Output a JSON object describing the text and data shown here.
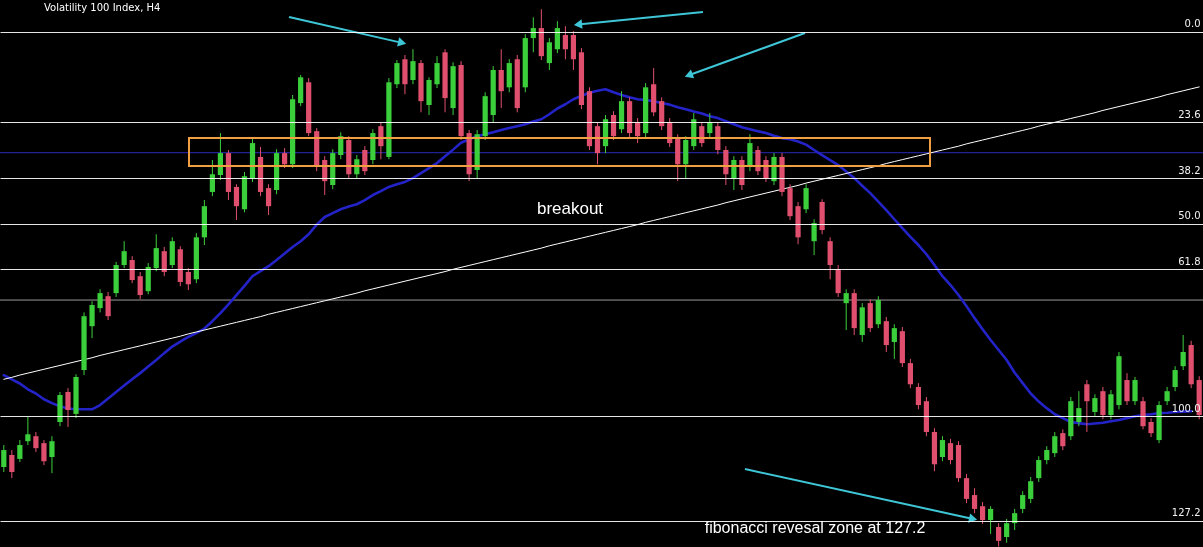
{
  "chart_data": {
    "type": "candlestick",
    "title": "Volatility 100 Index, H4",
    "annotations": [
      "breakout",
      "fibonacci revesal zone at 127.2"
    ],
    "categories": [
      null,
      null,
      null,
      null,
      null,
      null,
      null,
      null,
      null,
      null,
      null,
      null,
      null,
      null,
      null,
      null,
      null,
      null,
      null,
      null,
      null,
      null,
      null,
      null,
      null,
      null,
      null,
      null,
      null,
      null,
      null,
      null,
      null,
      null,
      null,
      null,
      null,
      null,
      null,
      null,
      null,
      null,
      null,
      null,
      null,
      null,
      null,
      null,
      null,
      null,
      null,
      null,
      null,
      null,
      null,
      null,
      null,
      null,
      null,
      null,
      null,
      null,
      null,
      null,
      null,
      null,
      null,
      null,
      null,
      null,
      null,
      null,
      null,
      null,
      null,
      null,
      null,
      null,
      null,
      null,
      null,
      null,
      null,
      null,
      null,
      null,
      null,
      null,
      null,
      null,
      null,
      null,
      null,
      null,
      null,
      null,
      null,
      null,
      null,
      null,
      null,
      null,
      null,
      null,
      null,
      null,
      null,
      null,
      null,
      null,
      null,
      null,
      null,
      null,
      null,
      null,
      null,
      null,
      null,
      null,
      null,
      null,
      null,
      null,
      null,
      null,
      null,
      null,
      null,
      null,
      null,
      null,
      null,
      null,
      null,
      null,
      null,
      null,
      null,
      null,
      null,
      null,
      null,
      null,
      null,
      null,
      null,
      null,
      null,
      null
    ],
    "ohlc": [
      [
        113.2,
        114.5,
        107.5,
        108.8
      ],
      [
        110.1,
        116.1,
        108.8,
        114.5
      ],
      [
        111.1,
        111.9,
        106.2,
        107.5
      ],
      [
        106.5,
        107.5,
        100.2,
        104.7
      ],
      [
        105.2,
        109.3,
        104.1,
        108.3
      ],
      [
        107.0,
        112.7,
        106.2,
        111.7
      ],
      [
        110.6,
        114.8,
        105.2,
        106.5
      ],
      [
        101.5,
        102.6,
        93.7,
        94.5
      ],
      [
        93.7,
        102.8,
        92.7,
        98.4
      ],
      [
        99.4,
        100.5,
        89.1,
        89.8
      ],
      [
        88.0,
        89.3,
        73.0,
        74.0
      ],
      [
        76.6,
        79.7,
        70.1,
        71.1
      ],
      [
        71.9,
        73.0,
        67.0,
        68.0
      ],
      [
        68.8,
        75.0,
        67.7,
        74.0
      ],
      [
        68.0,
        69.0,
        59.9,
        60.7
      ],
      [
        60.7,
        61.5,
        54.5,
        57.1
      ],
      [
        59.4,
        65.4,
        58.4,
        64.6
      ],
      [
        63.6,
        69.6,
        62.5,
        68.5
      ],
      [
        67.5,
        68.3,
        60.2,
        61.2
      ],
      [
        61.5,
        62.3,
        52.7,
        56.3
      ],
      [
        57.1,
        63.6,
        56.0,
        62.5
      ],
      [
        60.7,
        61.5,
        53.5,
        54.5
      ],
      [
        56.6,
        66.2,
        55.8,
        65.1
      ],
      [
        62.5,
        67.2,
        61.5,
        65.7
      ],
      [
        64.4,
        65.4,
        52.4,
        53.5
      ],
      [
        53.5,
        55.5,
        43.8,
        45.4
      ],
      [
        41.7,
        42.8,
        33.4,
        37.1
      ],
      [
        37.3,
        38.6,
        26.4,
        31.6
      ],
      [
        31.6,
        43.8,
        30.8,
        41.7
      ],
      [
        40.4,
        49.0,
        39.7,
        45.4
      ],
      [
        46.2,
        47.0,
        36.5,
        37.6
      ],
      [
        38.1,
        39.1,
        27.7,
        29.0
      ],
      [
        32.6,
        42.8,
        30.0,
        41.7
      ],
      [
        40.7,
        47.7,
        39.7,
        45.4
      ],
      [
        41.2,
        42.3,
        30.6,
        31.6
      ],
      [
        31.6,
        35.5,
        30.3,
        34.5
      ],
      [
        34.5,
        35.5,
        16.5,
        17.6
      ],
      [
        18.6,
        19.4,
        11.3,
        11.9
      ],
      [
        13.2,
        27.2,
        12.1,
        26.4
      ],
      [
        25.9,
        36.3,
        25.1,
        35.2
      ],
      [
        33.4,
        42.5,
        32.4,
        38.9
      ],
      [
        39.9,
        41.0,
        30.6,
        31.6
      ],
      [
        32.1,
        33.2,
        26.2,
        27.2
      ],
      [
        28.2,
        38.1,
        27.2,
        37.1
      ],
      [
        37.1,
        38.1,
        32.1,
        33.2
      ],
      [
        30.8,
        37.3,
        29.8,
        36.3
      ],
      [
        33.4,
        34.5,
        25.4,
        26.4
      ],
      [
        24.6,
        33.2,
        23.6,
        29.8
      ],
      [
        32.6,
        33.2,
        12.1,
        13.2
      ],
      [
        13.7,
        14.7,
        7.4,
        8.2
      ],
      [
        7.2,
        16.3,
        6.1,
        13.7
      ],
      [
        12.6,
        13.7,
        4.6,
        7.7
      ],
      [
        8.2,
        21.0,
        7.4,
        18.1
      ],
      [
        19.1,
        21.7,
        11.9,
        12.6
      ],
      [
        13.7,
        14.7,
        6.4,
        8.2
      ],
      [
        5.4,
        21.0,
        4.6,
        17.3
      ],
      [
        19.9,
        21.7,
        8.0,
        9.0
      ],
      [
        8.7,
        28.2,
        7.7,
        27.2
      ],
      [
        26.4,
        38.9,
        25.6,
        37.1
      ],
      [
        36.0,
        38.1,
        25.6,
        26.7
      ],
      [
        27.2,
        28.2,
        15.8,
        16.8
      ],
      [
        21.7,
        23.6,
        9.0,
        10.0
      ],
      [
        10.0,
        19.9,
        4.6,
        15.5
      ],
      [
        14.5,
        15.8,
        7.2,
        8.2
      ],
      [
        7.2,
        21.0,
        6.1,
        19.9
      ],
      [
        14.5,
        15.8,
        0.7,
        1.7
      ],
      [
        1.7,
        5.4,
        -3.7,
        -0.9
      ],
      [
        -0.9,
        7.4,
        -5.8,
        6.4
      ],
      [
        8.2,
        10.0,
        1.7,
        2.8
      ],
      [
        4.6,
        5.6,
        -2.7,
        -0.9
      ],
      [
        0.9,
        7.2,
        -1.4,
        4.6
      ],
      [
        0.9,
        10.0,
        -0.1,
        7.2
      ],
      [
        5.4,
        20.2,
        4.3,
        19.1
      ],
      [
        15.5,
        30.8,
        14.5,
        29.8
      ],
      [
        24.6,
        34.5,
        23.6,
        31.6
      ],
      [
        29.8,
        31.6,
        21.7,
        22.8
      ],
      [
        21.7,
        28.2,
        20.7,
        27.2
      ],
      [
        25.4,
        26.4,
        15.5,
        18.1
      ],
      [
        18.1,
        27.5,
        17.1,
        26.4
      ],
      [
        23.6,
        29.0,
        22.5,
        27.2
      ],
      [
        26.4,
        27.5,
        13.4,
        14.5
      ],
      [
        13.7,
        22.0,
        9.5,
        21.0
      ],
      [
        18.1,
        25.6,
        17.1,
        24.6
      ],
      [
        23.6,
        30.0,
        22.5,
        29.0
      ],
      [
        27.7,
        38.9,
        26.7,
        34.5
      ],
      [
        34.5,
        38.1,
        27.2,
        28.2
      ],
      [
        29.8,
        30.8,
        21.2,
        22.8
      ],
      [
        24.6,
        30.0,
        23.6,
        29.0
      ],
      [
        26.4,
        27.5,
        21.2,
        23.6
      ],
      [
        24.6,
        31.9,
        23.6,
        30.8
      ],
      [
        30.8,
        39.9,
        29.8,
        37.1
      ],
      [
        38.1,
        41.2,
        32.4,
        33.4
      ],
      [
        33.4,
        41.2,
        32.4,
        39.9
      ],
      [
        35.2,
        36.3,
        26.7,
        29.0
      ],
      [
        30.8,
        37.3,
        29.8,
        36.3
      ],
      [
        33.4,
        39.1,
        32.4,
        38.1
      ],
      [
        38.9,
        39.9,
        31.6,
        32.6
      ],
      [
        32.6,
        42.8,
        31.6,
        41.7
      ],
      [
        40.7,
        49.0,
        39.7,
        48.0
      ],
      [
        45.4,
        55.3,
        44.3,
        53.5
      ],
      [
        46.2,
        47.2,
        39.7,
        40.7
      ],
      [
        54.5,
        58.1,
        48.8,
        49.8
      ],
      [
        44.3,
        52.7,
        43.6,
        51.6
      ],
      [
        54.5,
        64.4,
        53.5,
        60.7
      ],
      [
        61.8,
        69.0,
        60.7,
        68.0
      ],
      [
        70.6,
        77.6,
        67.0,
        68.0
      ],
      [
        68.0,
        78.9,
        67.0,
        77.1
      ],
      [
        78.9,
        80.7,
        70.6,
        71.7
      ],
      [
        70.6,
        78.1,
        69.6,
        77.1
      ],
      [
        76.1,
        77.1,
        68.8,
        69.8
      ],
      [
        75.3,
        83.3,
        74.2,
        81.5
      ],
      [
        80.7,
        85.1,
        76.1,
        77.1
      ],
      [
        77.9,
        87.2,
        76.8,
        86.2
      ],
      [
        86.2,
        92.7,
        85.1,
        91.7
      ],
      [
        92.4,
        98.2,
        91.4,
        97.1
      ],
      [
        96.1,
        105.2,
        95.0,
        104.1
      ],
      [
        104.1,
        114.3,
        103.1,
        112.5
      ],
      [
        110.6,
        111.7,
        105.2,
        106.2
      ],
      [
        107.0,
        112.5,
        105.9,
        111.4
      ],
      [
        107.5,
        117.1,
        106.5,
        116.1
      ],
      [
        116.1,
        122.6,
        115.0,
        121.5
      ],
      [
        120.5,
        125.2,
        118.7,
        124.1
      ],
      [
        123.4,
        128.0,
        122.3,
        127.0
      ],
      [
        127.0,
        130.6,
        123.4,
        124.1
      ],
      [
        128.8,
        133.9,
        127.8,
        132.4
      ],
      [
        131.4,
        132.9,
        126.7,
        127.8
      ],
      [
        127.8,
        129.6,
        124.1,
        125.2
      ],
      [
        124.1,
        125.2,
        119.5,
        120.5
      ],
      [
        121.5,
        122.6,
        115.8,
        116.9
      ],
      [
        116.1,
        117.1,
        110.4,
        111.4
      ],
      [
        111.4,
        112.5,
        107.8,
        108.8
      ],
      [
        109.6,
        110.6,
        104.1,
        105.2
      ],
      [
        104.4,
        108.8,
        103.4,
        107.8
      ],
      [
        105.2,
        106.2,
        95.0,
        96.1
      ],
      [
        101.5,
        102.6,
        93.5,
        97.9
      ],
      [
        91.7,
        104.1,
        90.6,
        96.1
      ],
      [
        98.9,
        99.9,
        94.3,
        95.3
      ],
      [
        93.5,
        100.8,
        92.4,
        99.7
      ],
      [
        99.7,
        100.8,
        93.2,
        94.3
      ],
      [
        97.1,
        98.2,
        83.3,
        84.4
      ],
      [
        90.6,
        97.1,
        88.8,
        96.1
      ],
      [
        96.1,
        97.1,
        89.8,
        90.6
      ],
      [
        96.1,
        103.4,
        95.0,
        102.6
      ],
      [
        101.5,
        105.4,
        100.5,
        104.4
      ],
      [
        106.2,
        107.0,
        96.1,
        97.1
      ],
      [
        96.1,
        97.1,
        92.4,
        93.5
      ],
      [
        92.4,
        93.5,
        87.0,
        88.0
      ],
      [
        87.0,
        88.0,
        78.9,
        83.3
      ],
      [
        81.5,
        92.7,
        80.4,
        91.7
      ],
      [
        90.6,
        100.8,
        89.6,
        99.7
      ]
    ],
    "colors": [
      "#3ccf3c",
      "#e0506e",
      "#3ccf3c",
      "#3ccf3c",
      "#e0506e",
      "#e0506e",
      "#3ccf3c",
      "#3ccf3c",
      "#e0506e",
      "#3ccf3c",
      "#3ccf3c",
      "#3ccf3c",
      "#3ccf3c",
      "#e0506e",
      "#3ccf3c",
      "#3ccf3c",
      "#e0506e",
      "#e0506e",
      "#3ccf3c",
      "#3ccf3c",
      "#e0506e",
      "#3ccf3c",
      "#e0506e",
      "#e0506e",
      "#3ccf3c",
      "#3ccf3c",
      "#3ccf3c",
      "#3ccf3c",
      "#e0506e",
      "#e0506e",
      "#3ccf3c",
      "#3ccf3c",
      "#e0506e",
      "#e0506e",
      "#3ccf3c",
      "#e0506e",
      "#3ccf3c",
      "#3ccf3c",
      "#e0506e",
      "#e0506e",
      "#e0506e",
      "#3ccf3c",
      "#3ccf3c",
      "#e0506e",
      "#3ccf3c",
      "#e0506e",
      "#3ccf3c",
      "#e0506e",
      "#3ccf3c",
      "#3ccf3c",
      "#e0506e",
      "#3ccf3c",
      "#e0506e",
      "#3ccf3c",
      "#3ccf3c",
      "#e0506e",
      "#3ccf3c",
      "#e0506e",
      "#e0506e",
      "#3ccf3c",
      "#3ccf3c",
      "#3ccf3c",
      "#e0506e",
      "#3ccf3c",
      "#e0506e",
      "#3ccf3c",
      "#3ccf3c",
      "#e0506e",
      "#3ccf3c",
      "#3ccf3c",
      "#e0506e",
      "#e0506e",
      "#e0506e",
      "#e0506e",
      "#e0506e",
      "#3ccf3c",
      "#e0506e",
      "#3ccf3c",
      "#e0506e",
      "#e0506e",
      "#3ccf3c",
      "#e0506e",
      "#e0506e",
      "#e0506e",
      "#e0506e",
      "#3ccf3c",
      "#3ccf3c",
      "#e0506e",
      "#3ccf3c",
      "#e0506e",
      "#e0506e",
      "#3ccf3c",
      "#e0506e",
      "#3ccf3c",
      "#e0506e",
      "#e0506e",
      "#3ccf3c",
      "#e0506e",
      "#e0506e",
      "#e0506e",
      "#3ccf3c",
      "#3ccf3c",
      "#e0506e",
      "#e0506e",
      "#e0506e",
      "#3ccf3c",
      "#e0506e",
      "#3ccf3c",
      "#e0506e",
      "#3ccf3c",
      "#e0506e",
      "#3ccf3c",
      "#e0506e",
      "#e0506e",
      "#e0506e",
      "#e0506e",
      "#e0506e",
      "#3ccf3c",
      "#e0506e",
      "#e0506e",
      "#e0506e",
      "#e0506e",
      "#e0506e",
      "#3ccf3c",
      "#e0506e",
      "#3ccf3c",
      "#3ccf3c",
      "#3ccf3c",
      "#3ccf3c",
      "#3ccf3c",
      "#3ccf3c",
      "#3ccf3c",
      "#e0506e",
      "#3ccf3c",
      "#3ccf3c",
      "#e0506e",
      "#3ccf3c",
      "#e0506e",
      "#3ccf3c",
      "#3ccf3c",
      "#e0506e",
      "#3ccf3c",
      "#e0506e",
      "#e0506e",
      "#3ccf3c",
      "#3ccf3c",
      "#3ccf3c",
      "#3ccf3c",
      "#e0506e",
      "#e0506e"
    ],
    "series": [
      {
        "type": "line",
        "color": "#2323c8",
        "values": [
          89.3,
          90.4,
          91.5,
          93.0,
          94.1,
          95.6,
          96.6,
          97.4,
          98.0,
          98.2,
          98.2,
          98.2,
          97.1,
          95.4,
          93.7,
          92.0,
          90.4,
          88.8,
          87.1,
          85.4,
          83.6,
          81.9,
          80.6,
          79.4,
          78.4,
          77.2,
          75.3,
          73.2,
          70.9,
          68.5,
          66.1,
          63.6,
          62.3,
          61.0,
          59.4,
          57.7,
          56.0,
          54.5,
          52.7,
          50.2,
          48.2,
          47.2,
          46.2,
          45.5,
          44.9,
          43.8,
          42.5,
          41.5,
          40.4,
          39.7,
          39.1,
          38.1,
          36.8,
          35.5,
          34.2,
          32.4,
          30.7,
          28.9,
          28.0,
          27.2,
          26.7,
          26.2,
          25.6,
          25.1,
          24.6,
          24.1,
          23.4,
          22.8,
          21.5,
          20.0,
          18.9,
          17.6,
          16.7,
          15.9,
          15.4,
          15.0,
          15.8,
          16.5,
          17.1,
          17.6,
          17.8,
          18.1,
          18.6,
          19.0,
          19.7,
          20.2,
          20.8,
          21.3,
          22.0,
          22.5,
          23.3,
          24.1,
          24.9,
          25.4,
          25.9,
          26.4,
          27.1,
          27.7,
          28.0,
          28.6,
          29.4,
          30.8,
          32.1,
          33.4,
          34.7,
          36.4,
          38.1,
          40.1,
          42.0,
          44.2,
          46.4,
          48.8,
          51.1,
          53.4,
          55.5,
          57.9,
          60.7,
          63.6,
          65.9,
          68.5,
          71.4,
          74.5,
          77.4,
          80.2,
          82.8,
          85.4,
          88.7,
          91.4,
          94.1,
          96.2,
          97.9,
          99.5,
          100.5,
          101.5,
          101.8,
          102.1,
          101.9,
          101.7,
          101.3,
          101.0,
          100.5,
          100.0,
          99.7,
          99.5,
          99.2,
          99.1,
          98.9,
          98.8,
          98.7,
          null
        ]
      },
      {
        "type": "line",
        "color": "#ffffff",
        "values": [
          90.4,
          89.9,
          89.3,
          88.8,
          88.3,
          87.8,
          87.3,
          86.8,
          86.3,
          85.8,
          85.3,
          84.8,
          84.2,
          83.7,
          83.2,
          82.7,
          82.2,
          81.7,
          81.2,
          80.7,
          80.2,
          79.7,
          79.2,
          78.6,
          78.1,
          77.6,
          77.1,
          76.6,
          76.1,
          75.6,
          75.1,
          74.6,
          74.1,
          73.5,
          73.0,
          72.5,
          72.0,
          71.5,
          71.0,
          70.5,
          70.0,
          69.5,
          69.0,
          68.5,
          68.0,
          67.4,
          66.9,
          66.4,
          65.9,
          65.4,
          64.9,
          64.4,
          63.9,
          63.4,
          62.9,
          62.4,
          61.8,
          61.3,
          60.8,
          60.3,
          59.8,
          59.3,
          58.8,
          58.3,
          57.8,
          57.3,
          56.8,
          56.3,
          55.7,
          55.2,
          54.7,
          54.2,
          53.7,
          53.2,
          52.7,
          52.2,
          51.7,
          51.2,
          50.7,
          50.2,
          49.6,
          49.1,
          48.6,
          48.1,
          47.6,
          47.1,
          46.6,
          46.1,
          45.6,
          45.1,
          44.5,
          44.0,
          43.5,
          43.0,
          42.5,
          42.0,
          41.5,
          41.0,
          40.5,
          40.0,
          39.4,
          38.9,
          38.4,
          37.9,
          37.4,
          36.9,
          36.4,
          35.9,
          35.4,
          34.9,
          34.3,
          33.8,
          33.3,
          32.8,
          32.3,
          31.8,
          31.3,
          30.8,
          30.3,
          29.8,
          29.2,
          28.7,
          28.2,
          27.7,
          27.2,
          26.7,
          26.2,
          25.7,
          25.2,
          24.6,
          24.1,
          23.6,
          23.1,
          22.6,
          22.1,
          21.6,
          21.1,
          20.5,
          20.0,
          19.5,
          19.0,
          18.5,
          18.0,
          17.5,
          17.0,
          16.4,
          15.9,
          15.4,
          14.9,
          14.4
        ]
      }
    ],
    "ylim": [
      134,
      -8.2
    ],
    "yticks": [
      {
        "value": 0,
        "label": "0.0"
      },
      23.6,
      38.2,
      {
        "value": 50,
        "label": "50.0"
      },
      61.8,
      {
        "value": 100,
        "label": "100.0"
      },
      127.2
    ],
    "ref_lines": [
      {
        "axis": "y",
        "value": 31.5,
        "color": "#2a2ab8"
      },
      {
        "axis": "y",
        "value": 69.8,
        "color": "#9a9a9a"
      }
    ],
    "grid": "y",
    "tick_labels": "y"
  }
}
